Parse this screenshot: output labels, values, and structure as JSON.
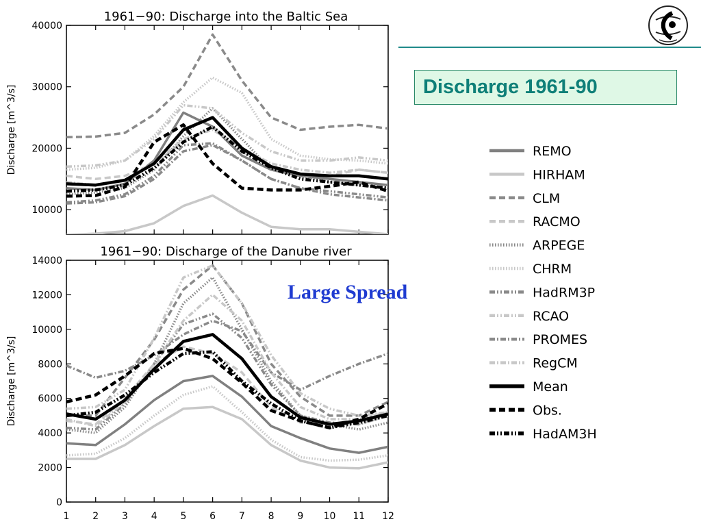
{
  "slide": {
    "heading": "Discharge 1961-90",
    "annotation": "Large Spread",
    "heading_color": "#0e7f78",
    "heading_bg": "#dff8e6",
    "annotation_color": "#1f3bd1",
    "logo_icon": "institute-logo-icon"
  },
  "legend": [
    {
      "name": "REMO",
      "color": "#808080",
      "dash": "solid",
      "width": 3.5
    },
    {
      "name": "HIRHAM",
      "color": "#c8c8c8",
      "dash": "solid",
      "width": 3.5
    },
    {
      "name": "CLM",
      "color": "#8a8a8a",
      "dash": "dash",
      "width": 3.5
    },
    {
      "name": "RACMO",
      "color": "#c8c8c8",
      "dash": "dash",
      "width": 3.5
    },
    {
      "name": "ARPEGE",
      "color": "#8a8a8a",
      "dash": "dot",
      "width": 3.5
    },
    {
      "name": "CHRM",
      "color": "#c8c8c8",
      "dash": "dot",
      "width": 3.5
    },
    {
      "name": "HadRM3P",
      "color": "#8a8a8a",
      "dash": "dashdotdot",
      "width": 3.5
    },
    {
      "name": "RCAO",
      "color": "#c8c8c8",
      "dash": "dashdotdot",
      "width": 3.5
    },
    {
      "name": "PROMES",
      "color": "#8a8a8a",
      "dash": "dashdot",
      "width": 3.5
    },
    {
      "name": "RegCM",
      "color": "#c8c8c8",
      "dash": "dashdot",
      "width": 3.5
    },
    {
      "name": "Mean",
      "color": "#000000",
      "dash": "solid",
      "width": 4.5
    },
    {
      "name": "Obs.",
      "color": "#000000",
      "dash": "dash",
      "width": 4.5
    },
    {
      "name": "HadAM3H",
      "color": "#000000",
      "dash": "dashdotdot",
      "width": 4.5
    }
  ],
  "chart_data": [
    {
      "type": "line",
      "title": "1961−90: Discharge into the Baltic Sea",
      "ylabel": "Discharge [m^3/s]",
      "xlabel": "",
      "x": [
        1,
        2,
        3,
        4,
        5,
        6,
        7,
        8,
        9,
        10,
        11,
        12
      ],
      "ylim": [
        6000,
        40000
      ],
      "yticks": [
        10000,
        20000,
        30000,
        40000
      ],
      "ytick_labels": [
        "10000",
        "20000",
        "30000",
        "40000"
      ],
      "xtick_labels": [],
      "series": [
        {
          "name": "REMO",
          "values": [
            13500,
            13200,
            14200,
            18000,
            25800,
            23500,
            18800,
            16500,
            15500,
            15000,
            14500,
            14000
          ]
        },
        {
          "name": "HIRHAM",
          "values": [
            5900,
            6100,
            6500,
            7800,
            10600,
            12300,
            9500,
            7200,
            6800,
            6800,
            6400,
            6000
          ]
        },
        {
          "name": "CLM",
          "values": [
            21800,
            21900,
            22500,
            25500,
            30000,
            38500,
            31000,
            25000,
            23000,
            23500,
            23800,
            23200
          ]
        },
        {
          "name": "RACMO",
          "values": [
            15500,
            15000,
            15500,
            17500,
            21000,
            23500,
            19500,
            17000,
            15800,
            15500,
            16500,
            16000
          ]
        },
        {
          "name": "ARPEGE",
          "values": [
            12500,
            12800,
            13500,
            16500,
            22000,
            26500,
            21500,
            16500,
            15500,
            14500,
            14000,
            13500
          ]
        },
        {
          "name": "CHRM",
          "values": [
            16500,
            16800,
            18000,
            22000,
            27500,
            31500,
            29000,
            21500,
            18800,
            18200,
            18000,
            17500
          ]
        },
        {
          "name": "HadRM3P",
          "values": [
            11200,
            11500,
            12500,
            15500,
            20500,
            20800,
            18000,
            15000,
            13500,
            13000,
            12500,
            12000
          ]
        },
        {
          "name": "RCAO",
          "values": [
            17000,
            17200,
            18000,
            21500,
            27000,
            26500,
            22500,
            19500,
            18000,
            18000,
            18500,
            18000
          ]
        },
        {
          "name": "PROMES",
          "values": [
            11000,
            11200,
            12200,
            15000,
            19500,
            20500,
            18000,
            15000,
            13500,
            12500,
            12000,
            11500
          ]
        },
        {
          "name": "RegCM",
          "values": [
            14500,
            14000,
            14800,
            17500,
            21500,
            23000,
            20000,
            17500,
            16500,
            16000,
            16500,
            16000
          ]
        },
        {
          "name": "Mean",
          "values": [
            14200,
            14000,
            14800,
            17500,
            23000,
            25000,
            20000,
            17000,
            15800,
            15500,
            15500,
            15000
          ]
        },
        {
          "name": "Obs.",
          "values": [
            12200,
            12300,
            13700,
            21000,
            23800,
            17500,
            13500,
            13200,
            13200,
            13800,
            14500,
            13000
          ]
        },
        {
          "name": "HadAM3H",
          "values": [
            13000,
            13200,
            14000,
            16800,
            21000,
            23500,
            19500,
            16800,
            15000,
            14500,
            14000,
            13500
          ]
        }
      ]
    },
    {
      "type": "line",
      "title": "1961−90: Discharge of the Danube river",
      "ylabel": "Discharge [m^3/s]",
      "xlabel": "",
      "x": [
        1,
        2,
        3,
        4,
        5,
        6,
        7,
        8,
        9,
        10,
        11,
        12
      ],
      "ylim": [
        0,
        14000
      ],
      "yticks": [
        0,
        2000,
        4000,
        6000,
        8000,
        10000,
        12000,
        14000
      ],
      "ytick_labels": [
        "0",
        "2000",
        "4000",
        "6000",
        "8000",
        "10000",
        "12000",
        "14000"
      ],
      "xtick_labels": [
        "1",
        "2",
        "3",
        "4",
        "5",
        "6",
        "7",
        "8",
        "9",
        "10",
        "11",
        "12"
      ],
      "series": [
        {
          "name": "REMO",
          "values": [
            3400,
            3300,
            4500,
            5900,
            7000,
            7300,
            6100,
            4400,
            3700,
            3100,
            2850,
            3200
          ]
        },
        {
          "name": "HIRHAM",
          "values": [
            2500,
            2500,
            3300,
            4400,
            5400,
            5500,
            4800,
            3300,
            2400,
            2000,
            1950,
            2300
          ]
        },
        {
          "name": "CLM",
          "values": [
            5000,
            5000,
            7200,
            9400,
            12300,
            13700,
            11500,
            8000,
            6100,
            5000,
            5000,
            5800
          ]
        },
        {
          "name": "RACMO",
          "values": [
            4700,
            4500,
            6000,
            8000,
            9000,
            8600,
            7500,
            5500,
            4600,
            4500,
            4500,
            5000
          ]
        },
        {
          "name": "ARPEGE",
          "values": [
            4200,
            4000,
            5500,
            8000,
            11500,
            13000,
            10000,
            7000,
            5000,
            4500,
            4200,
            4600
          ]
        },
        {
          "name": "CHRM",
          "values": [
            2700,
            2800,
            3700,
            5000,
            6200,
            6700,
            5200,
            3600,
            2600,
            2400,
            2450,
            2700
          ]
        },
        {
          "name": "HadRM3P",
          "values": [
            4300,
            4200,
            5700,
            8000,
            10300,
            10900,
            9500,
            6800,
            5000,
            4600,
            4500,
            5000
          ]
        },
        {
          "name": "RCAO",
          "values": [
            5400,
            5500,
            6500,
            9500,
            13000,
            13700,
            11500,
            8500,
            6300,
            5400,
            5000,
            5200
          ]
        },
        {
          "name": "PROMES",
          "values": [
            7900,
            7200,
            7600,
            8500,
            9700,
            10500,
            9900,
            7500,
            6500,
            7300,
            8000,
            8600
          ]
        },
        {
          "name": "RegCM",
          "values": [
            4800,
            4400,
            5800,
            8000,
            10500,
            12000,
            10500,
            7500,
            5500,
            4800,
            4800,
            5200
          ]
        },
        {
          "name": "Mean",
          "values": [
            5100,
            4800,
            5900,
            7700,
            9300,
            9700,
            8300,
            6100,
            4900,
            4500,
            4700,
            5100
          ]
        },
        {
          "name": "Obs.",
          "values": [
            5800,
            6200,
            7300,
            8600,
            8900,
            8300,
            6900,
            5300,
            4700,
            4300,
            4800,
            5700
          ]
        },
        {
          "name": "HadAM3H",
          "values": [
            5000,
            5200,
            6200,
            7500,
            8600,
            8700,
            7000,
            5700,
            4700,
            4300,
            4600,
            5000
          ]
        }
      ]
    }
  ]
}
